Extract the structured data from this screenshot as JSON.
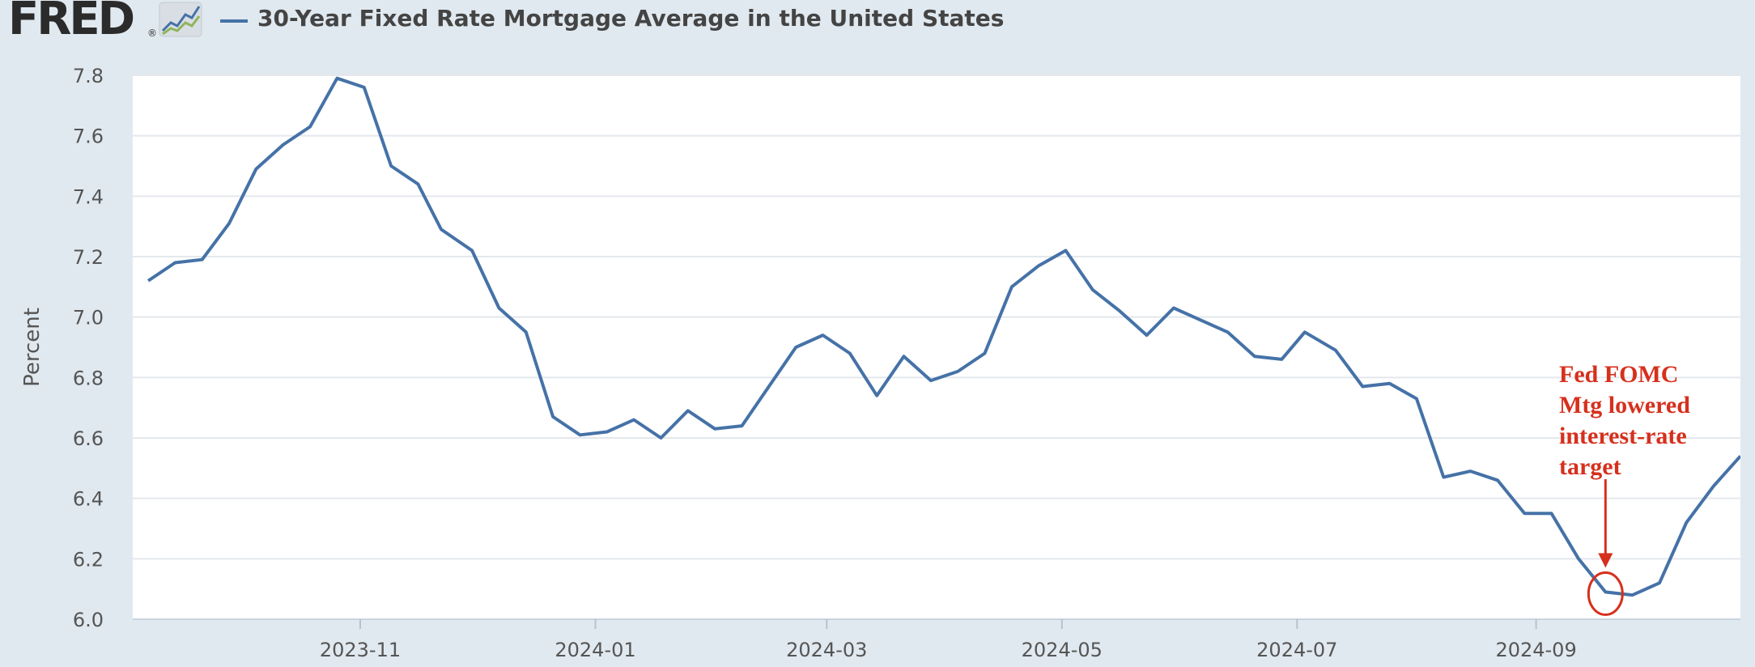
{
  "header": {
    "logo_text": "FRED",
    "logo_mark": "®",
    "logo_icon": "mini-line-chart-icon",
    "series_title": "30-Year Fixed Rate Mortgage Average in the United States",
    "series_color": "#4572a7"
  },
  "chart_data": {
    "type": "line",
    "title": "30-Year Fixed Rate Mortgage Average in the United States",
    "ylabel": "Percent",
    "xlabel": "",
    "ylim": [
      6.0,
      7.8
    ],
    "grid": true,
    "x_ticks": [
      "2023-11",
      "2024-01",
      "2024-03",
      "2024-05",
      "2024-07",
      "2024-09"
    ],
    "y_ticks": [
      "6.0",
      "6.2",
      "6.4",
      "6.6",
      "6.8",
      "7.0",
      "7.2",
      "7.4",
      "7.6",
      "7.8"
    ],
    "series": [
      {
        "name": "30-Year Fixed Rate Mortgage Average in the United States",
        "color": "#4572a7",
        "points": [
          [
            "2023-09-07",
            7.12
          ],
          [
            "2023-09-14",
            7.18
          ],
          [
            "2023-09-21",
            7.19
          ],
          [
            "2023-09-28",
            7.31
          ],
          [
            "2023-10-05",
            7.49
          ],
          [
            "2023-10-12",
            7.57
          ],
          [
            "2023-10-19",
            7.63
          ],
          [
            "2023-10-26",
            7.79
          ],
          [
            "2023-11-02",
            7.76
          ],
          [
            "2023-11-09",
            7.5
          ],
          [
            "2023-11-16",
            7.44
          ],
          [
            "2023-11-22",
            7.29
          ],
          [
            "2023-11-30",
            7.22
          ],
          [
            "2023-12-07",
            7.03
          ],
          [
            "2023-12-14",
            6.95
          ],
          [
            "2023-12-21",
            6.67
          ],
          [
            "2023-12-28",
            6.61
          ],
          [
            "2024-01-04",
            6.62
          ],
          [
            "2024-01-11",
            6.66
          ],
          [
            "2024-01-18",
            6.6
          ],
          [
            "2024-01-25",
            6.69
          ],
          [
            "2024-02-01",
            6.63
          ],
          [
            "2024-02-08",
            6.64
          ],
          [
            "2024-02-15",
            6.77
          ],
          [
            "2024-02-22",
            6.9
          ],
          [
            "2024-02-29",
            6.94
          ],
          [
            "2024-03-07",
            6.88
          ],
          [
            "2024-03-14",
            6.74
          ],
          [
            "2024-03-21",
            6.87
          ],
          [
            "2024-03-28",
            6.79
          ],
          [
            "2024-04-04",
            6.82
          ],
          [
            "2024-04-11",
            6.88
          ],
          [
            "2024-04-18",
            7.1
          ],
          [
            "2024-04-25",
            7.17
          ],
          [
            "2024-05-02",
            7.22
          ],
          [
            "2024-05-09",
            7.09
          ],
          [
            "2024-05-16",
            7.02
          ],
          [
            "2024-05-23",
            6.94
          ],
          [
            "2024-05-30",
            7.03
          ],
          [
            "2024-06-06",
            6.99
          ],
          [
            "2024-06-13",
            6.95
          ],
          [
            "2024-06-20",
            6.87
          ],
          [
            "2024-06-27",
            6.86
          ],
          [
            "2024-07-03",
            6.95
          ],
          [
            "2024-07-11",
            6.89
          ],
          [
            "2024-07-18",
            6.77
          ],
          [
            "2024-07-25",
            6.78
          ],
          [
            "2024-08-01",
            6.73
          ],
          [
            "2024-08-08",
            6.47
          ],
          [
            "2024-08-15",
            6.49
          ],
          [
            "2024-08-22",
            6.46
          ],
          [
            "2024-08-29",
            6.35
          ],
          [
            "2024-09-05",
            6.35
          ],
          [
            "2024-09-12",
            6.2
          ],
          [
            "2024-09-19",
            6.09
          ],
          [
            "2024-09-26",
            6.08
          ],
          [
            "2024-10-03",
            6.12
          ],
          [
            "2024-10-10",
            6.32
          ],
          [
            "2024-10-17",
            6.44
          ],
          [
            "2024-10-24",
            6.54
          ]
        ]
      }
    ],
    "annotation": {
      "lines": [
        "Fed FOMC",
        "Mtg lowered",
        "interest-rate",
        "target"
      ],
      "color": "#d6301c",
      "target_date": "2024-09-19",
      "target_value": 6.09
    }
  }
}
